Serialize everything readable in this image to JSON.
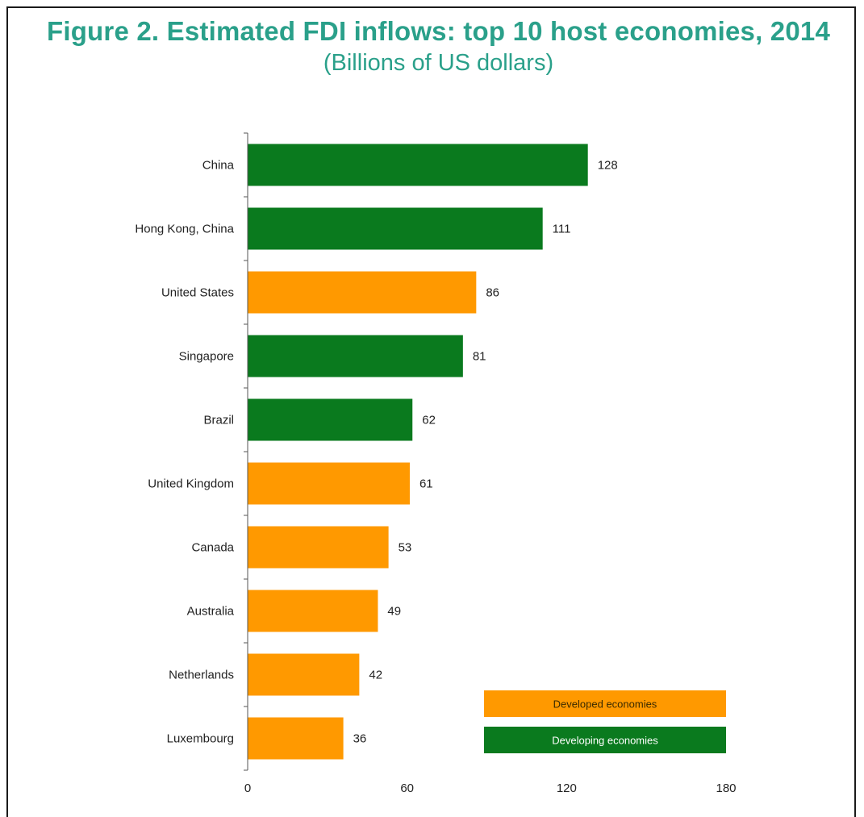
{
  "chart_data": {
    "type": "bar",
    "orientation": "horizontal",
    "title": "Figure 2.  Estimated FDI inflows: top 10 host economies, 2014",
    "subtitle": "(Billions of US dollars)",
    "categories": [
      "China",
      "Hong Kong, China",
      "United States",
      "Singapore",
      "Brazil",
      "United Kingdom",
      "Canada",
      "Australia",
      "Netherlands",
      "Luxembourg"
    ],
    "values": [
      128,
      111,
      86,
      81,
      62,
      61,
      53,
      49,
      42,
      36
    ],
    "groups": [
      "Developing economies",
      "Developing economies",
      "Developed economies",
      "Developing economies",
      "Developing economies",
      "Developed economies",
      "Developed economies",
      "Developed economies",
      "Developed economies",
      "Developed economies"
    ],
    "xlim": [
      0,
      180
    ],
    "xticks": [
      0,
      60,
      120,
      180
    ],
    "grid": false,
    "legend": {
      "placement": "bottom-right",
      "entries": [
        {
          "label": "Developed economies",
          "color": "#ff9900",
          "text_color": "#3a2a00"
        },
        {
          "label": "Developing economies",
          "color": "#0a7a1e",
          "text_color": "#ffffff"
        }
      ]
    }
  }
}
